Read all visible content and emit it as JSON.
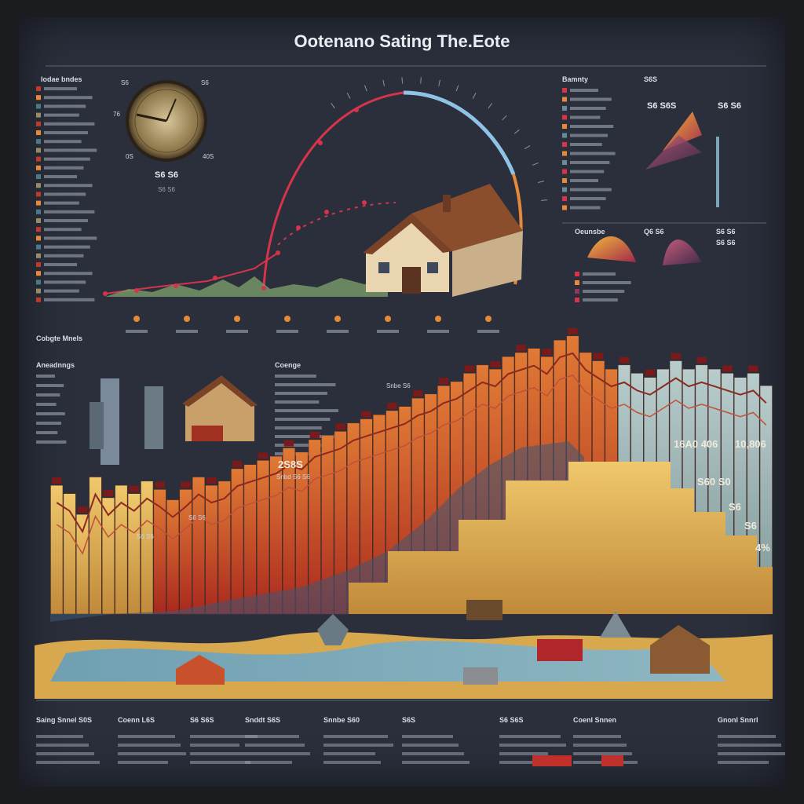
{
  "title": "Ootenano Sating The.Eote",
  "colors": {
    "background": "#2a2f3b",
    "bar_gold": "#e8b85c",
    "bar_red": "#c0392b",
    "bar_teal": "#9ab8b8",
    "accent_red": "#d6344a",
    "water": "#6f9fb0"
  },
  "gauge": {
    "label_left_top": "S6",
    "label_right_top": "S6",
    "label_left": "76",
    "label_left_bottom": "0S",
    "label_right_bottom": "40S",
    "value": "S6 S6",
    "caption": "S6 S6"
  },
  "left_list": {
    "header": "Iodae bndes"
  },
  "right_top": {
    "header": "Bamnty",
    "col2_header": "S6S",
    "value_a": "S6 S6S",
    "value_b": "S6 S6"
  },
  "right_mid": {
    "label_a": "Oeunsbe",
    "label_b": "Q6 S6",
    "label_c": "S6 S6",
    "label_d": "S6 S6"
  },
  "mid_section": {
    "label": "Cobgte Mnels"
  },
  "house_panel": {
    "header": "Aneadnngs",
    "mid_header": "Coenge",
    "tag": "Snbe S6"
  },
  "annotations": {
    "a": "2S8S",
    "b": "Snbd S6 S6",
    "c": "S6 S6",
    "d": "S6 S6",
    "e": "16A0 406",
    "f": "10,806",
    "g": "S60 S0",
    "h": "S6",
    "i": "S6",
    "j": "4%"
  },
  "footer": {
    "labels": [
      "Saing Snnel S0S",
      "Coenn L6S",
      "S6 S6S",
      "Snddt S6S",
      "Snnbe S60",
      "S6S",
      "S6 S6S",
      "Coenl Snnen",
      "Gnonl Snnrl"
    ],
    "button_a": "",
    "button_b": ""
  },
  "chart_data": {
    "type": "bar",
    "series": [
      {
        "name": "",
        "values": [
          62,
          58,
          48,
          66,
          56,
          62,
          58,
          64,
          60,
          55,
          60,
          66,
          62,
          64,
          70,
          72,
          74,
          76,
          80,
          78,
          84,
          86,
          88,
          92,
          94,
          96,
          98,
          100,
          104,
          106,
          110,
          112,
          116,
          120,
          118,
          124,
          126,
          128,
          124,
          132,
          134,
          126,
          122,
          118,
          120,
          116,
          114,
          118,
          122,
          118,
          120,
          118,
          116,
          114,
          116,
          110
        ]
      }
    ]
  }
}
